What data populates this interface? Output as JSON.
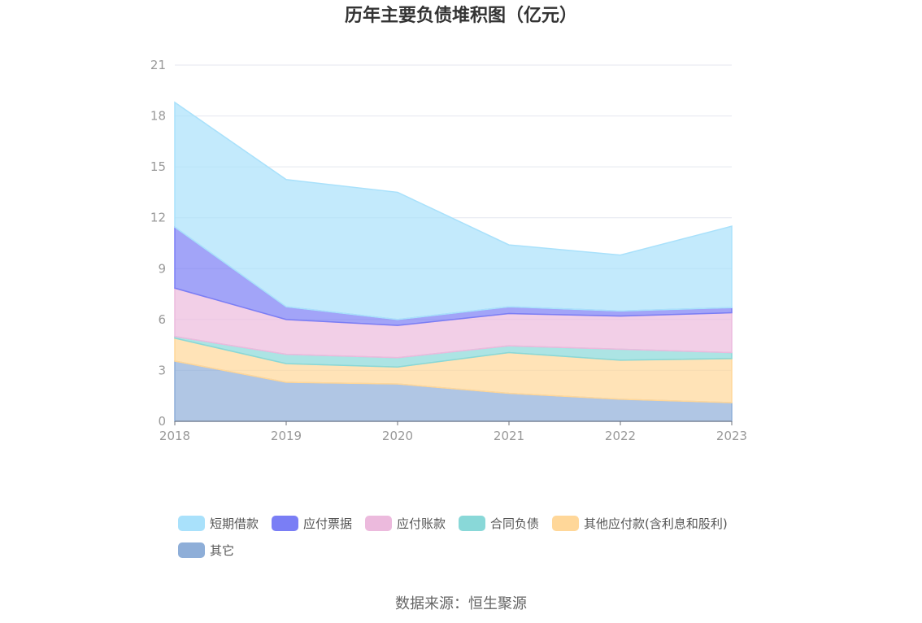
{
  "chart_data": {
    "type": "area",
    "stacked": true,
    "title": "历年主要负债堆积图（亿元）",
    "categories": [
      "2018",
      "2019",
      "2020",
      "2021",
      "2022",
      "2023"
    ],
    "ylim": [
      0,
      21
    ],
    "yticks": [
      0,
      3,
      6,
      9,
      12,
      15,
      18,
      21
    ],
    "grid": true,
    "legend_position": "bottom",
    "series": [
      {
        "name": "其它",
        "color": "#8eaed8",
        "values": [
          3.55,
          2.3,
          2.2,
          1.65,
          1.3,
          1.1
        ]
      },
      {
        "name": "其他应付款(含利息和股利)",
        "color": "#ffd799",
        "values": [
          1.35,
          1.1,
          1.0,
          2.4,
          2.3,
          2.6
        ]
      },
      {
        "name": "合同负债",
        "color": "#89d8d8",
        "values": [
          0.1,
          0.55,
          0.55,
          0.4,
          0.65,
          0.35
        ]
      },
      {
        "name": "应付账款",
        "color": "#ecbadd",
        "values": [
          2.85,
          2.05,
          1.9,
          1.9,
          1.95,
          2.35
        ]
      },
      {
        "name": "应付票据",
        "color": "#7a7ef5",
        "values": [
          3.6,
          0.75,
          0.35,
          0.4,
          0.3,
          0.3
        ]
      },
      {
        "name": "短期借款",
        "color": "#a9e1fb",
        "values": [
          7.35,
          7.5,
          7.5,
          3.65,
          3.3,
          4.8
        ]
      }
    ]
  },
  "legend_order": [
    "短期借款",
    "应付票据",
    "应付账款",
    "合同负债",
    "其他应付款(含利息和股利)",
    "其它"
  ],
  "source": "数据来源：恒生聚源"
}
